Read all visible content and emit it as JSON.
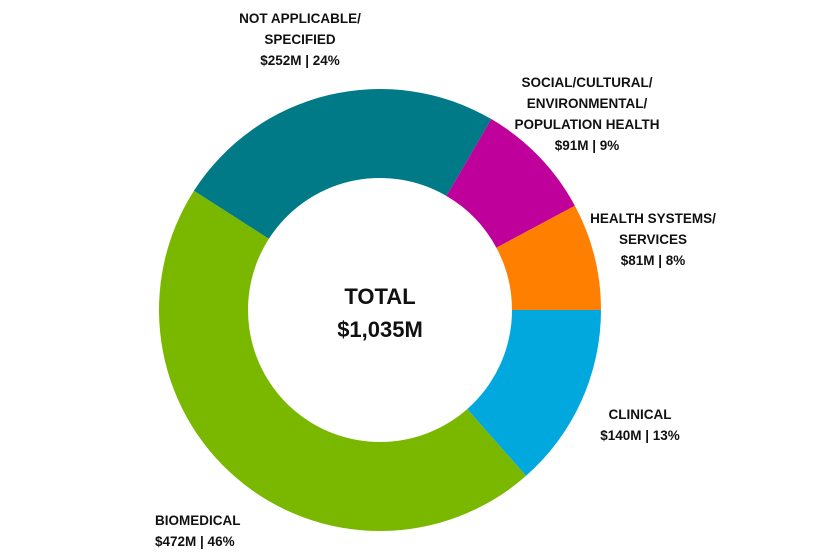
{
  "chart_data": {
    "type": "pie",
    "variant": "donut",
    "center_label": {
      "title": "TOTAL",
      "value": "$1,035M"
    },
    "slices": [
      {
        "name": "NOT APPLICABLE/ SPECIFIED",
        "lines": [
          "NOT APPLICABLE/",
          "SPECIFIED"
        ],
        "value": 252,
        "amount_label": "$252M | 24%",
        "percent": 24,
        "color": "#007a87"
      },
      {
        "name": "SOCIAL/CULTURAL/ ENVIRONMENTAL/ POPULATION HEALTH",
        "lines": [
          "SOCIAL/CULTURAL/",
          "ENVIRONMENTAL/",
          "POPULATION HEALTH"
        ],
        "value": 91,
        "amount_label": "$91M | 9%",
        "percent": 9,
        "color": "#c0009a"
      },
      {
        "name": "HEALTH SYSTEMS/ SERVICES",
        "lines": [
          "HEALTH SYSTEMS/",
          "SERVICES"
        ],
        "value": 81,
        "amount_label": "$81M | 8%",
        "percent": 8,
        "color": "#ff7f00"
      },
      {
        "name": "CLINICAL",
        "lines": [
          "CLINICAL"
        ],
        "value": 140,
        "amount_label": "$140M | 13%",
        "percent": 13,
        "color": "#00a8de"
      },
      {
        "name": "BIOMEDICAL",
        "lines": [
          "BIOMEDICAL"
        ],
        "value": 472,
        "amount_label": "$472M | 46%",
        "percent": 46,
        "color": "#7ab800"
      }
    ],
    "units": "$M"
  }
}
